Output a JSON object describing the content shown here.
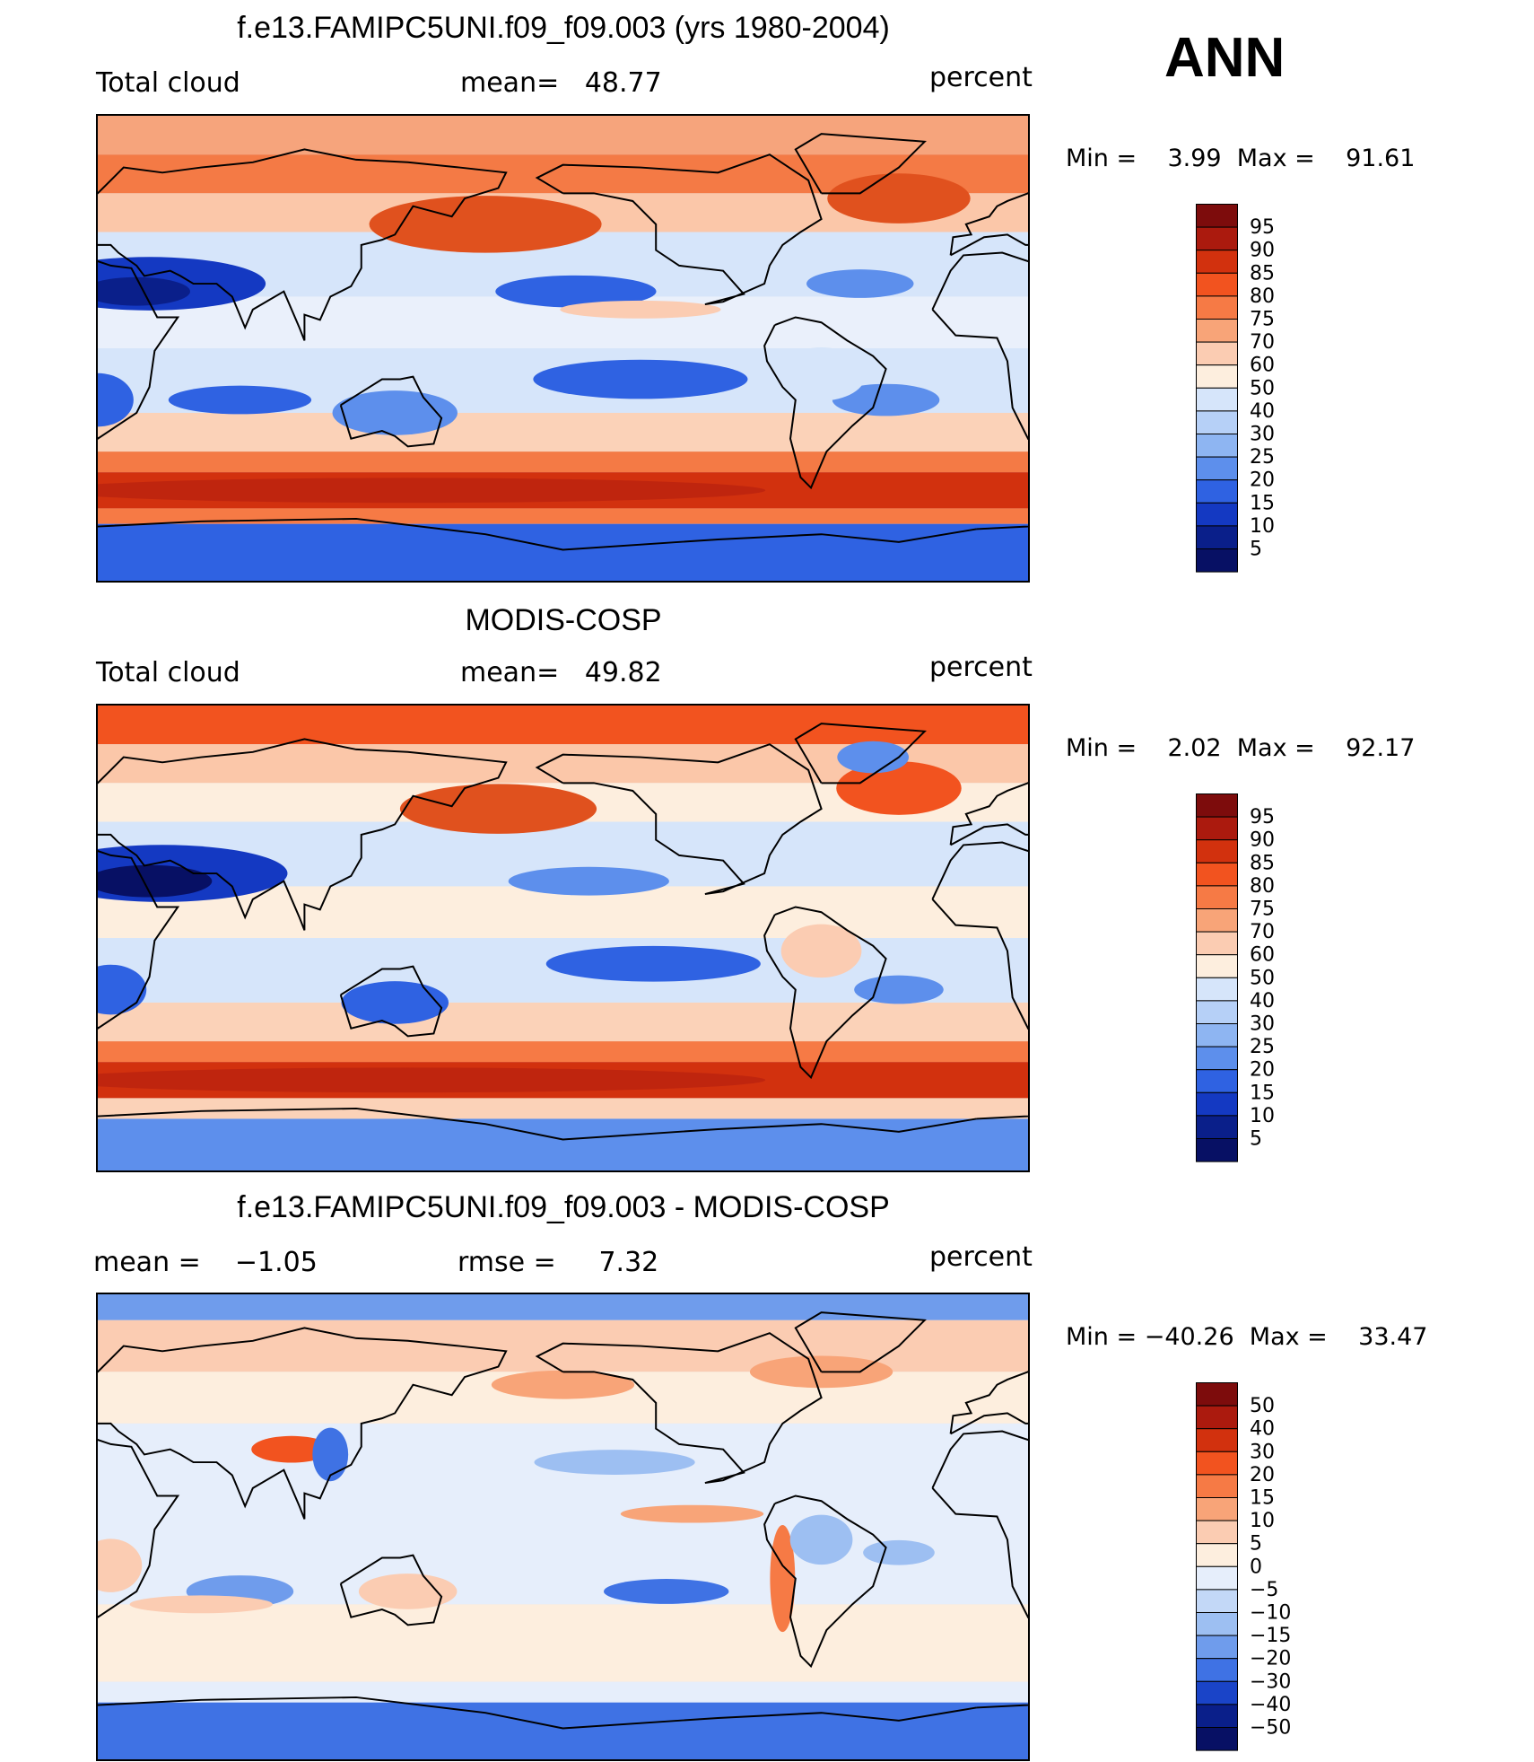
{
  "season": "ANN",
  "panels": [
    {
      "title": "f.e13.FAMIPC5UNI.f09_f09.003 (yrs 1980-2004)",
      "left_label": "Total cloud",
      "center_label": "mean=   48.77",
      "units": "percent",
      "minmax": "Min =    3.99  Max =    91.61",
      "colorbar": {
        "labels": [
          "95",
          "90",
          "85",
          "80",
          "75",
          "70",
          "60",
          "50",
          "40",
          "30",
          "25",
          "20",
          "15",
          "10",
          "5"
        ],
        "colors": [
          "#7d0c0c",
          "#ab1a0e",
          "#d2310e",
          "#f2531f",
          "#f67a45",
          "#f8a478",
          "#fbccb2",
          "#fdeede",
          "#d6e5fa",
          "#b6d0f7",
          "#8eb5f2",
          "#5d8fec",
          "#2f62e2",
          "#1439c2",
          "#0a1f8a",
          "#071064"
        ]
      },
      "map_kind": "model"
    },
    {
      "title": "MODIS-COSP",
      "left_label": "Total cloud",
      "center_label": "mean=   49.82",
      "units": "percent",
      "minmax": "Min =    2.02  Max =    92.17",
      "colorbar": {
        "labels": [
          "95",
          "90",
          "85",
          "80",
          "75",
          "70",
          "60",
          "50",
          "40",
          "30",
          "25",
          "20",
          "15",
          "10",
          "5"
        ],
        "colors": [
          "#7d0c0c",
          "#ab1a0e",
          "#d2310e",
          "#f2531f",
          "#f67a45",
          "#f8a478",
          "#fbccb2",
          "#fdeede",
          "#d6e5fa",
          "#b6d0f7",
          "#8eb5f2",
          "#5d8fec",
          "#2f62e2",
          "#1439c2",
          "#0a1f8a",
          "#071064"
        ]
      },
      "map_kind": "obs"
    },
    {
      "title": "f.e13.FAMIPC5UNI.f09_f09.003 - MODIS-COSP",
      "left_label": "mean =    −1.05",
      "center_label": "rmse =     7.32",
      "units": "percent",
      "minmax": "Min = −40.26  Max =    33.47",
      "colorbar": {
        "labels": [
          "50",
          "40",
          "30",
          "20",
          "15",
          "10",
          "5",
          "0",
          "−5",
          "−10",
          "−15",
          "−20",
          "−30",
          "−40",
          "−50"
        ],
        "colors": [
          "#7d0c0c",
          "#ab1a0e",
          "#d2310e",
          "#f2531f",
          "#f67a45",
          "#f8a478",
          "#fbccb2",
          "#fdeede",
          "#e6eefb",
          "#c3d8f7",
          "#9dbff2",
          "#6f9cec",
          "#3f72e4",
          "#1a44c8",
          "#0a1f8a",
          "#071064"
        ]
      },
      "map_kind": "diff"
    }
  ]
}
